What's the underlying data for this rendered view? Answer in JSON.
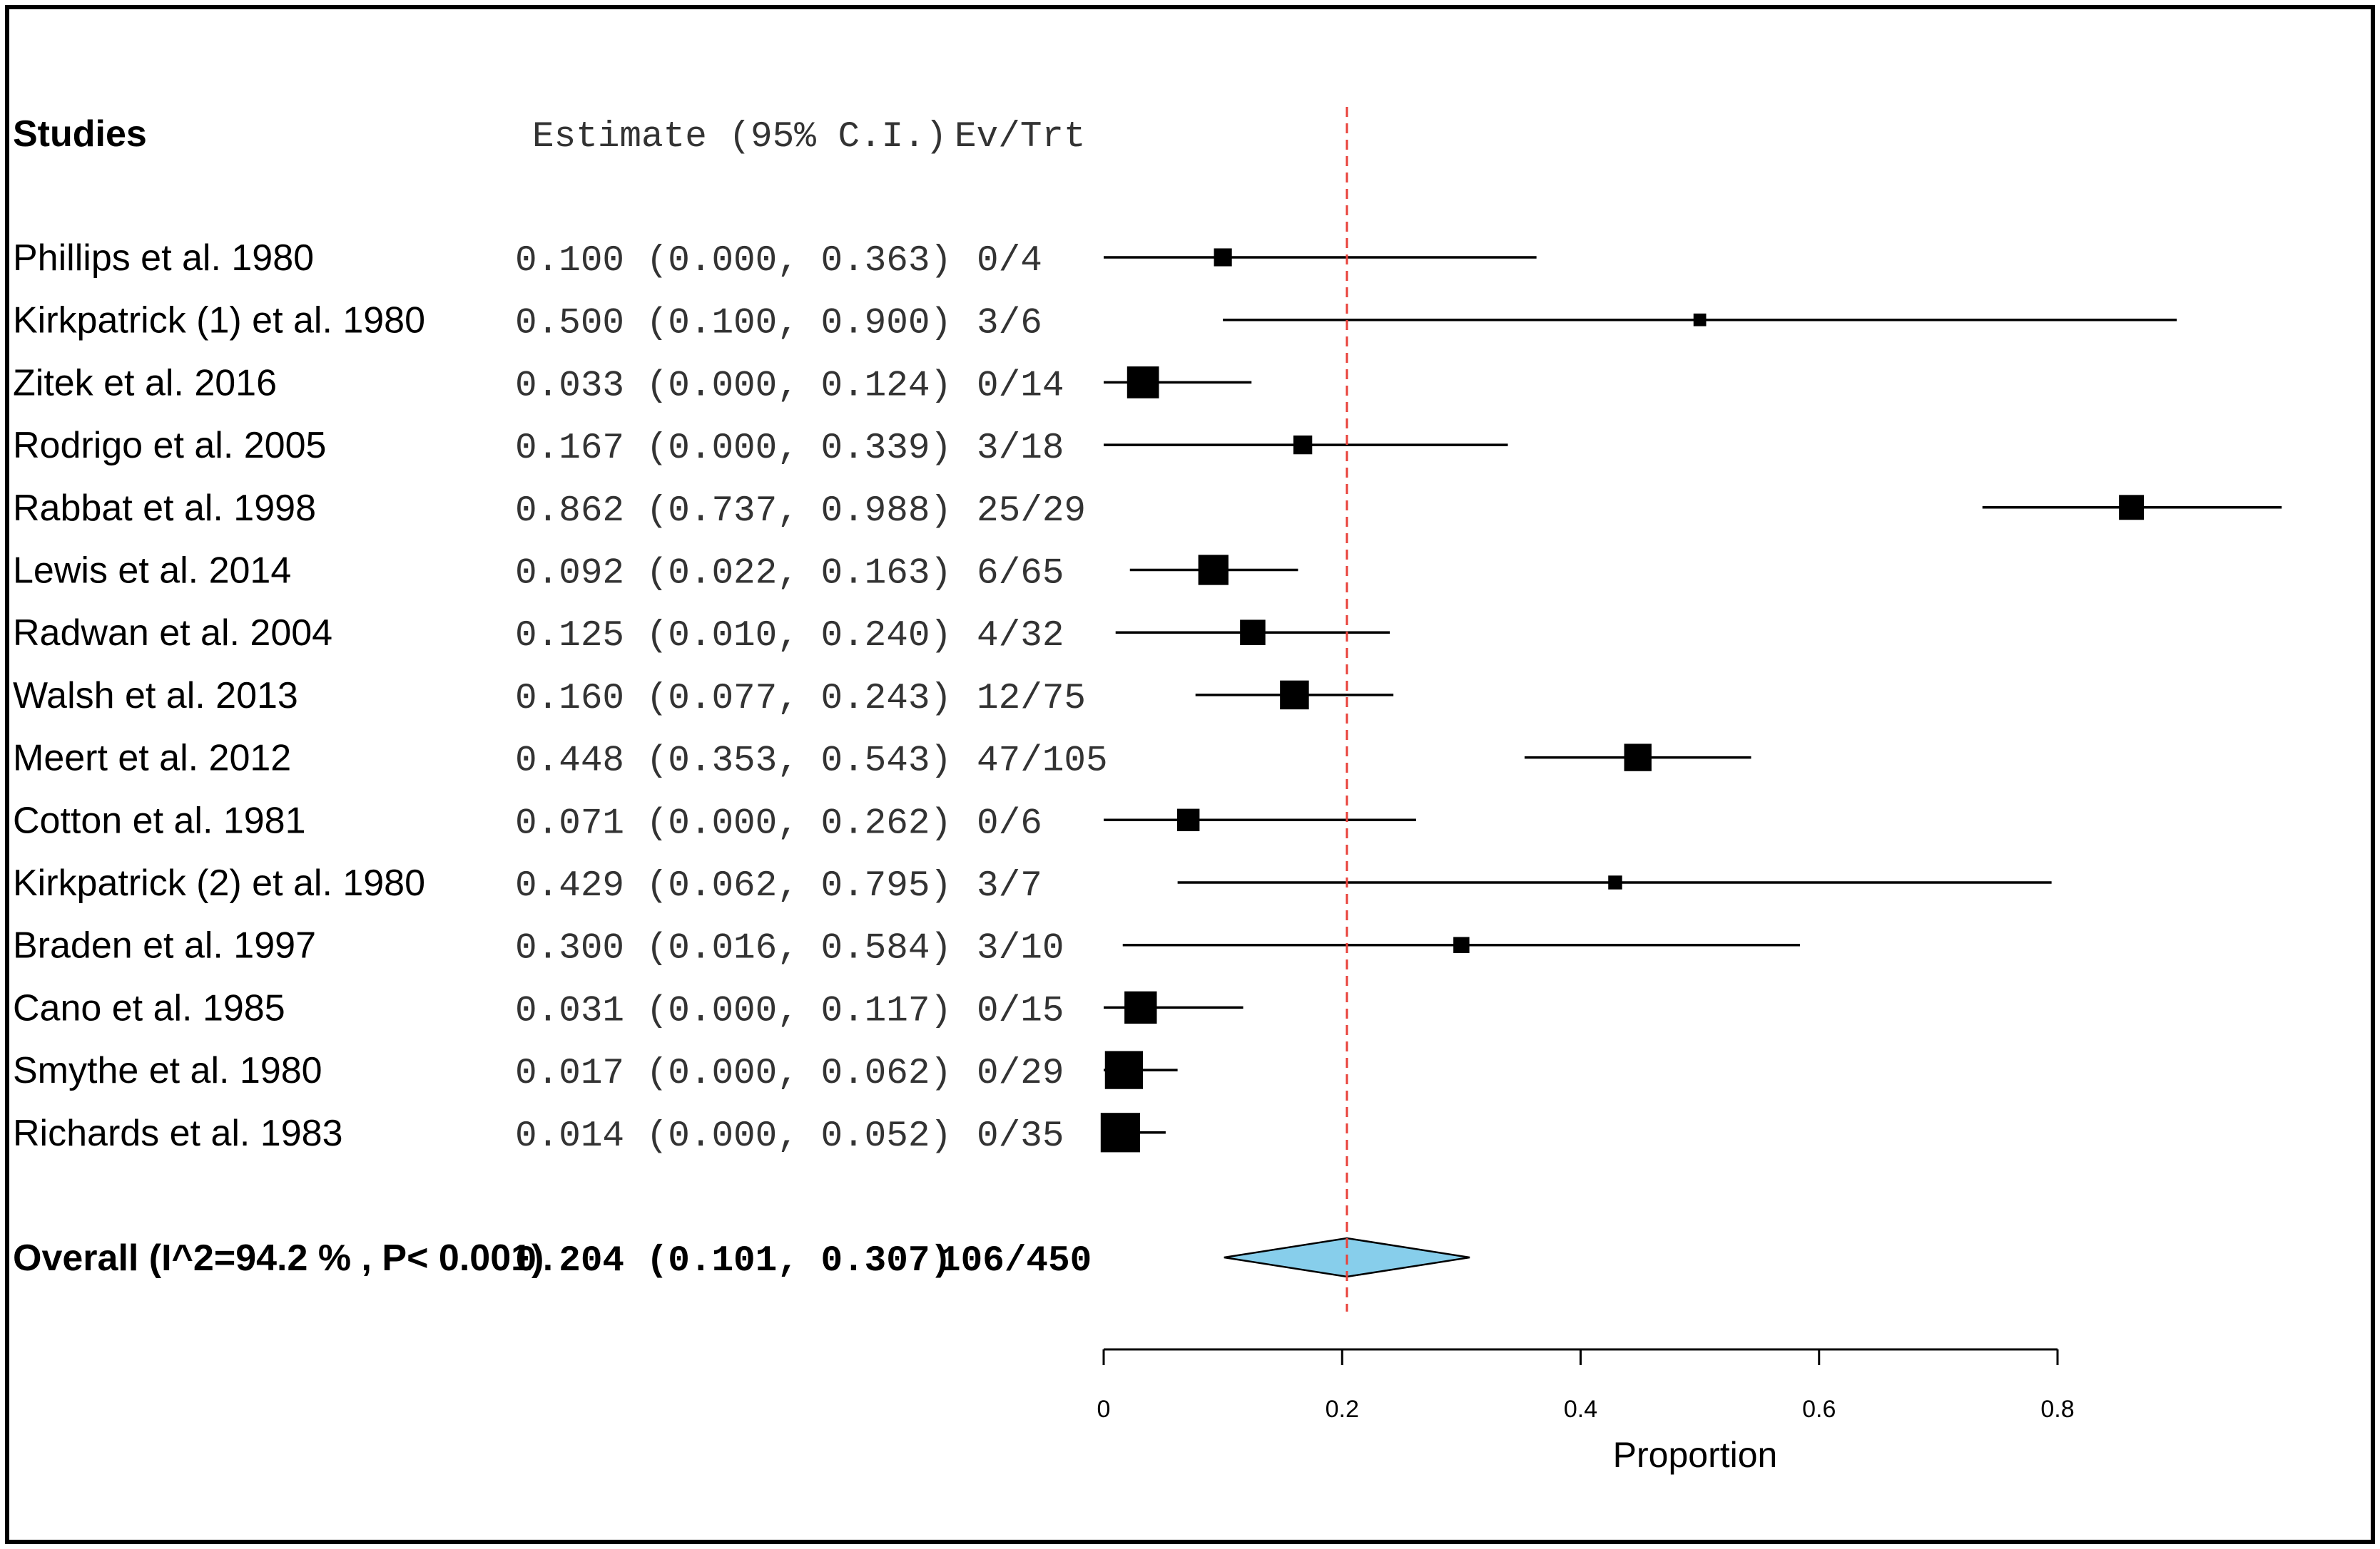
{
  "chart_data": {
    "type": "forest",
    "headers": {
      "study": "Studies",
      "estimate": "Estimate (95% C.I.)",
      "events": "Ev/Trt"
    },
    "studies": [
      {
        "name": "Phillips et al. 1980",
        "est": 0.1,
        "lo": 0.0,
        "hi": 0.363,
        "ci_text": "0.100 (0.000, 0.363)",
        "ev": "0/4",
        "w": 3.0
      },
      {
        "name": "Kirkpatrick (1) et al. 1980",
        "est": 0.5,
        "lo": 0.1,
        "hi": 0.9,
        "ci_text": "0.500 (0.100, 0.900)",
        "ev": "3/6",
        "w": 1.5
      },
      {
        "name": "Zitek et al. 2016",
        "est": 0.033,
        "lo": 0.0,
        "hi": 0.124,
        "ci_text": "0.033 (0.000, 0.124)",
        "ev": "0/14",
        "w": 9.5
      },
      {
        "name": "Rodrigo et al. 2005",
        "est": 0.167,
        "lo": 0.0,
        "hi": 0.339,
        "ci_text": "0.167 (0.000, 0.339)",
        "ev": "3/18",
        "w": 3.3
      },
      {
        "name": "Rabbat et al. 1998",
        "est": 0.862,
        "lo": 0.737,
        "hi": 0.988,
        "ci_text": "0.862 (0.737, 0.988)",
        "ev": "25/29",
        "w": 5.8
      },
      {
        "name": "Lewis et al. 2014",
        "est": 0.092,
        "lo": 0.022,
        "hi": 0.163,
        "ci_text": "0.092 (0.022, 0.163)",
        "ev": "6/65",
        "w": 8.5
      },
      {
        "name": "Radwan et al. 2004",
        "est": 0.125,
        "lo": 0.01,
        "hi": 0.24,
        "ci_text": "0.125 (0.010, 0.240)",
        "ev": "4/32",
        "w": 6.0
      },
      {
        "name": "Walsh et al. 2013",
        "est": 0.16,
        "lo": 0.077,
        "hi": 0.243,
        "ci_text": "0.160 (0.077, 0.243)",
        "ev": "12/75",
        "w": 7.8
      },
      {
        "name": "Meert et al. 2012",
        "est": 0.448,
        "lo": 0.353,
        "hi": 0.543,
        "ci_text": "0.448 (0.353, 0.543)",
        "ev": "47/105",
        "w": 7.0
      },
      {
        "name": "Cotton et al. 1981",
        "est": 0.071,
        "lo": 0.0,
        "hi": 0.262,
        "ci_text": "0.071 (0.000, 0.262)",
        "ev": "0/6",
        "w": 4.7
      },
      {
        "name": "Kirkpatrick (2) et al. 1980",
        "est": 0.429,
        "lo": 0.062,
        "hi": 0.795,
        "ci_text": "0.429 (0.062, 0.795)",
        "ev": "3/7",
        "w": 1.8
      },
      {
        "name": "Braden et al. 1997",
        "est": 0.3,
        "lo": 0.016,
        "hi": 0.584,
        "ci_text": "0.300 (0.016, 0.584)",
        "ev": "3/10",
        "w": 2.4
      },
      {
        "name": "Cano et al. 1985",
        "est": 0.031,
        "lo": 0.0,
        "hi": 0.117,
        "ci_text": "0.031 (0.000, 0.117)",
        "ev": "0/15",
        "w": 9.8
      },
      {
        "name": "Smythe et al. 1980",
        "est": 0.017,
        "lo": 0.0,
        "hi": 0.062,
        "ci_text": "0.017 (0.000, 0.062)",
        "ev": "0/29",
        "w": 13.5
      },
      {
        "name": "Richards et al. 1983",
        "est": 0.014,
        "lo": 0.0,
        "hi": 0.052,
        "ci_text": "0.014 (0.000, 0.052)",
        "ev": "0/35",
        "w": 14.5
      }
    ],
    "overall": {
      "label": "Overall (I^2=94.2 % , P< 0.001)",
      "est": 0.204,
      "lo": 0.101,
      "hi": 0.307,
      "ci_text": "0.204 (0.101, 0.307)",
      "ev": "106/450"
    },
    "xaxis": {
      "label": "Proportion",
      "ticks": [
        0,
        0.2,
        0.4,
        0.6,
        0.8
      ],
      "tick_labels": [
        "0",
        "0.2",
        "0.4",
        "0.6",
        "0.8"
      ],
      "range": [
        0,
        0.8
      ]
    },
    "reference_line": 0.204,
    "colors": {
      "diamond_fill": "#87ceeb",
      "reference_line": "#e8413a",
      "marks": "#000000"
    }
  }
}
